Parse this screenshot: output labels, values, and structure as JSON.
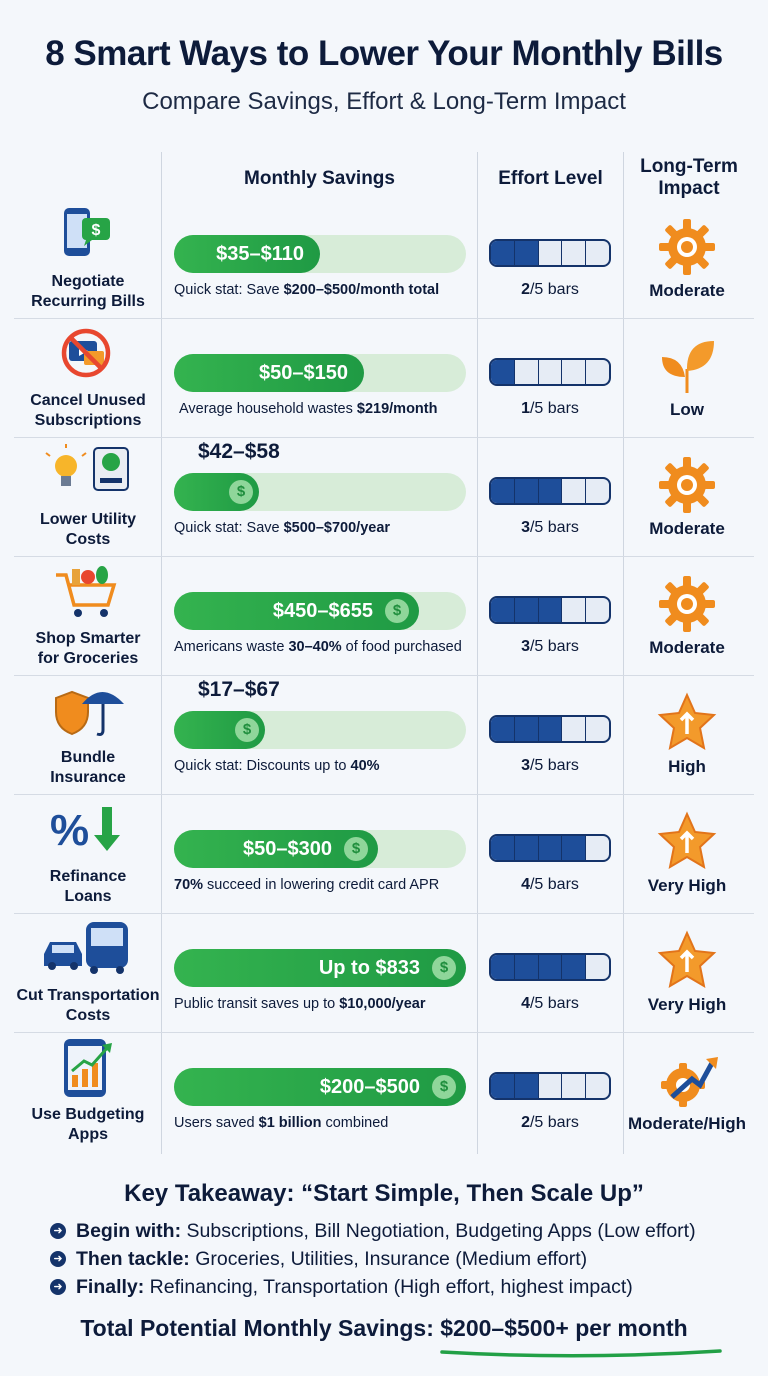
{
  "header": {
    "title": "8 Smart Ways to Lower Your Monthly Bills",
    "subtitle": "Compare Savings, Effort & Long-Term Impact"
  },
  "columns": {
    "savings": "Monthly Savings",
    "effort": "Effort Level",
    "impact_line1": "Long-Term",
    "impact_line2": "Impact"
  },
  "colors": {
    "green": "#22a046",
    "green_light": "#d7ecd8",
    "navy": "#14336a",
    "orange": "#f08c1e"
  },
  "rows": [
    {
      "label1": "Negotiate",
      "label2": "Recurring Bills",
      "icon": "phone-dollar-icon",
      "savings": "$35–$110",
      "fill": 0.5,
      "stat_pre": "Quick stat: Save ",
      "stat_bold": "$200–$500/month total",
      "stat_post": "",
      "effort_value": "2",
      "effort_suffix": "/5 bars",
      "effort": 2,
      "impact": "Moderate",
      "impact_icon": "gear-icon"
    },
    {
      "label1": "Cancel Unused",
      "label2": "Subscriptions",
      "icon": "no-subscription-icon",
      "savings": "$50–$150",
      "fill": 0.65,
      "stat_pre": "Average household wastes ",
      "stat_bold": "$219/month",
      "stat_post": "",
      "effort_value": "1",
      "effort_suffix": "/5 bars",
      "effort": 1,
      "impact": "Low",
      "impact_icon": "sprout-icon"
    },
    {
      "label1": "Lower Utility",
      "label2": "Costs",
      "icon": "bulb-meter-icon",
      "savings": "$42–$58",
      "fill": 0.29,
      "stat_pre": "Quick stat: Save ",
      "stat_bold": "$500–$700/year",
      "stat_post": "",
      "effort_value": "3",
      "effort_suffix": "/5 bars",
      "effort": 3,
      "impact": "Moderate",
      "impact_icon": "gear-icon"
    },
    {
      "label1": "Shop Smarter",
      "label2": "for Groceries",
      "icon": "grocery-cart-icon",
      "savings": "$450–$655",
      "fill": 0.84,
      "stat_pre": "Americans waste ",
      "stat_bold": "30–40%",
      "stat_post": " of food purchased",
      "effort_value": "3",
      "effort_suffix": "/5 bars",
      "effort": 3,
      "impact": "Moderate",
      "impact_icon": "gear-icon"
    },
    {
      "label1": "Bundle",
      "label2": "Insurance",
      "icon": "shield-umbrella-icon",
      "savings": "$17–$67",
      "fill": 0.31,
      "stat_pre": "Quick stat: Discounts up to ",
      "stat_bold": "40%",
      "stat_post": "",
      "effort_value": "3",
      "effort_suffix": "/5 bars",
      "effort": 3,
      "impact": "High",
      "impact_icon": "star-up-icon"
    },
    {
      "label1": "Refinance",
      "label2": "Loans",
      "icon": "percent-down-icon",
      "savings": "$50–$300",
      "fill": 0.7,
      "stat_pre": "",
      "stat_bold": "70%",
      "stat_post": " succeed in lowering credit card APR",
      "effort_value": "4",
      "effort_suffix": "/5 bars",
      "effort": 4,
      "impact": "Very High",
      "impact_icon": "star-up-icon"
    },
    {
      "label1": "Cut Transportation",
      "label2": "Costs",
      "icon": "car-bus-icon",
      "savings": "Up to $833",
      "fill": 1.0,
      "stat_pre": "Public transit saves up to ",
      "stat_bold": "$10,000/year",
      "stat_post": "",
      "effort_value": "4",
      "effort_suffix": "/5 bars",
      "effort": 4,
      "impact": "Very High",
      "impact_icon": "star-up-icon"
    },
    {
      "label1": "Use Budgeting",
      "label2": "Apps",
      "icon": "phone-chart-icon",
      "savings": "$200–$500",
      "fill": 1.0,
      "stat_pre": "Users saved ",
      "stat_bold": "$1 billion",
      "stat_post": " combined",
      "effort_value": "2",
      "effort_suffix": "/5 bars",
      "effort": 2,
      "impact": "Moderate/High",
      "impact_icon": "gear-arrow-icon"
    }
  ],
  "takeaway": {
    "title": "Key Takeaway: “Start Simple, Then Scale Up”",
    "items": [
      {
        "bold": "Begin with:",
        "text": " Subscriptions, Bill Negotiation, Budgeting Apps (Low effort)"
      },
      {
        "bold": "Then tackle:",
        "text": " Groceries, Utilities, Insurance (Medium effort)"
      },
      {
        "bold": "Finally:",
        "text": " Refinancing, Transportation (High effort, highest impact)"
      }
    ],
    "total_label": "Total Potential Monthly Savings: ",
    "total_value": "$200–$500+ per month"
  }
}
